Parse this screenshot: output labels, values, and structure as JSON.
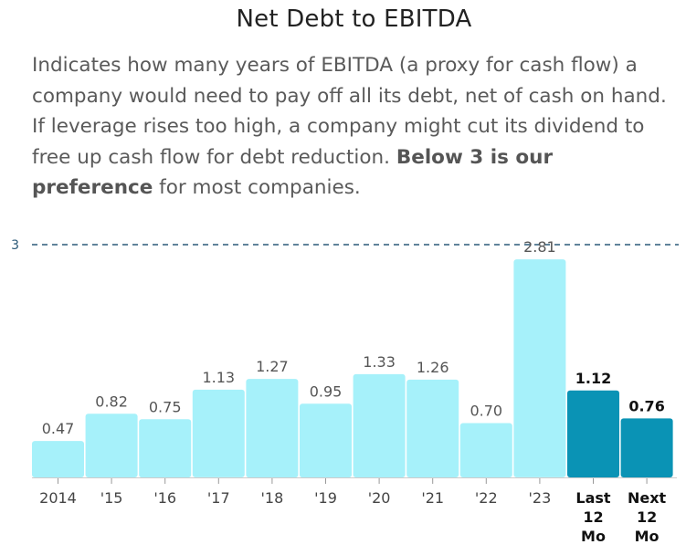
{
  "title": "Net Debt to EBITDA",
  "description": {
    "text_before": "Indicates how many years of EBITDA (a proxy for cash flow) a company would need to pay off all its debt, net of cash on hand. If leverage rises too high, a company might cut its dividend to free up cash flow for debt reduction. ",
    "bold": "Below 3 is our preference",
    "text_after": " for most companies."
  },
  "chart_data": {
    "type": "bar",
    "categories": [
      "2014",
      "'15",
      "'16",
      "'17",
      "'18",
      "'19",
      "'20",
      "'21",
      "'22",
      "'23",
      "Last 12 Mo",
      "Next 12 Mo"
    ],
    "values": [
      0.47,
      0.82,
      0.75,
      1.13,
      1.27,
      0.95,
      1.33,
      1.26,
      0.7,
      2.81,
      1.12,
      0.76
    ],
    "data_labels": [
      "0.47",
      "0.82",
      "0.75",
      "1.13",
      "1.27",
      "0.95",
      "1.33",
      "1.26",
      "0.70",
      "2.81",
      "1.12",
      "0.76"
    ],
    "highlighted": [
      false,
      false,
      false,
      false,
      false,
      false,
      false,
      false,
      false,
      false,
      true,
      true
    ],
    "reference_line": {
      "value": 3,
      "label": "3"
    },
    "ylim": [
      0,
      3
    ],
    "grid": false,
    "xlabel": "",
    "ylabel": "",
    "colors": {
      "bar": "#a6f1fa",
      "bar_highlight": "#0a93b5",
      "reference_line": "#2c5a78"
    }
  }
}
